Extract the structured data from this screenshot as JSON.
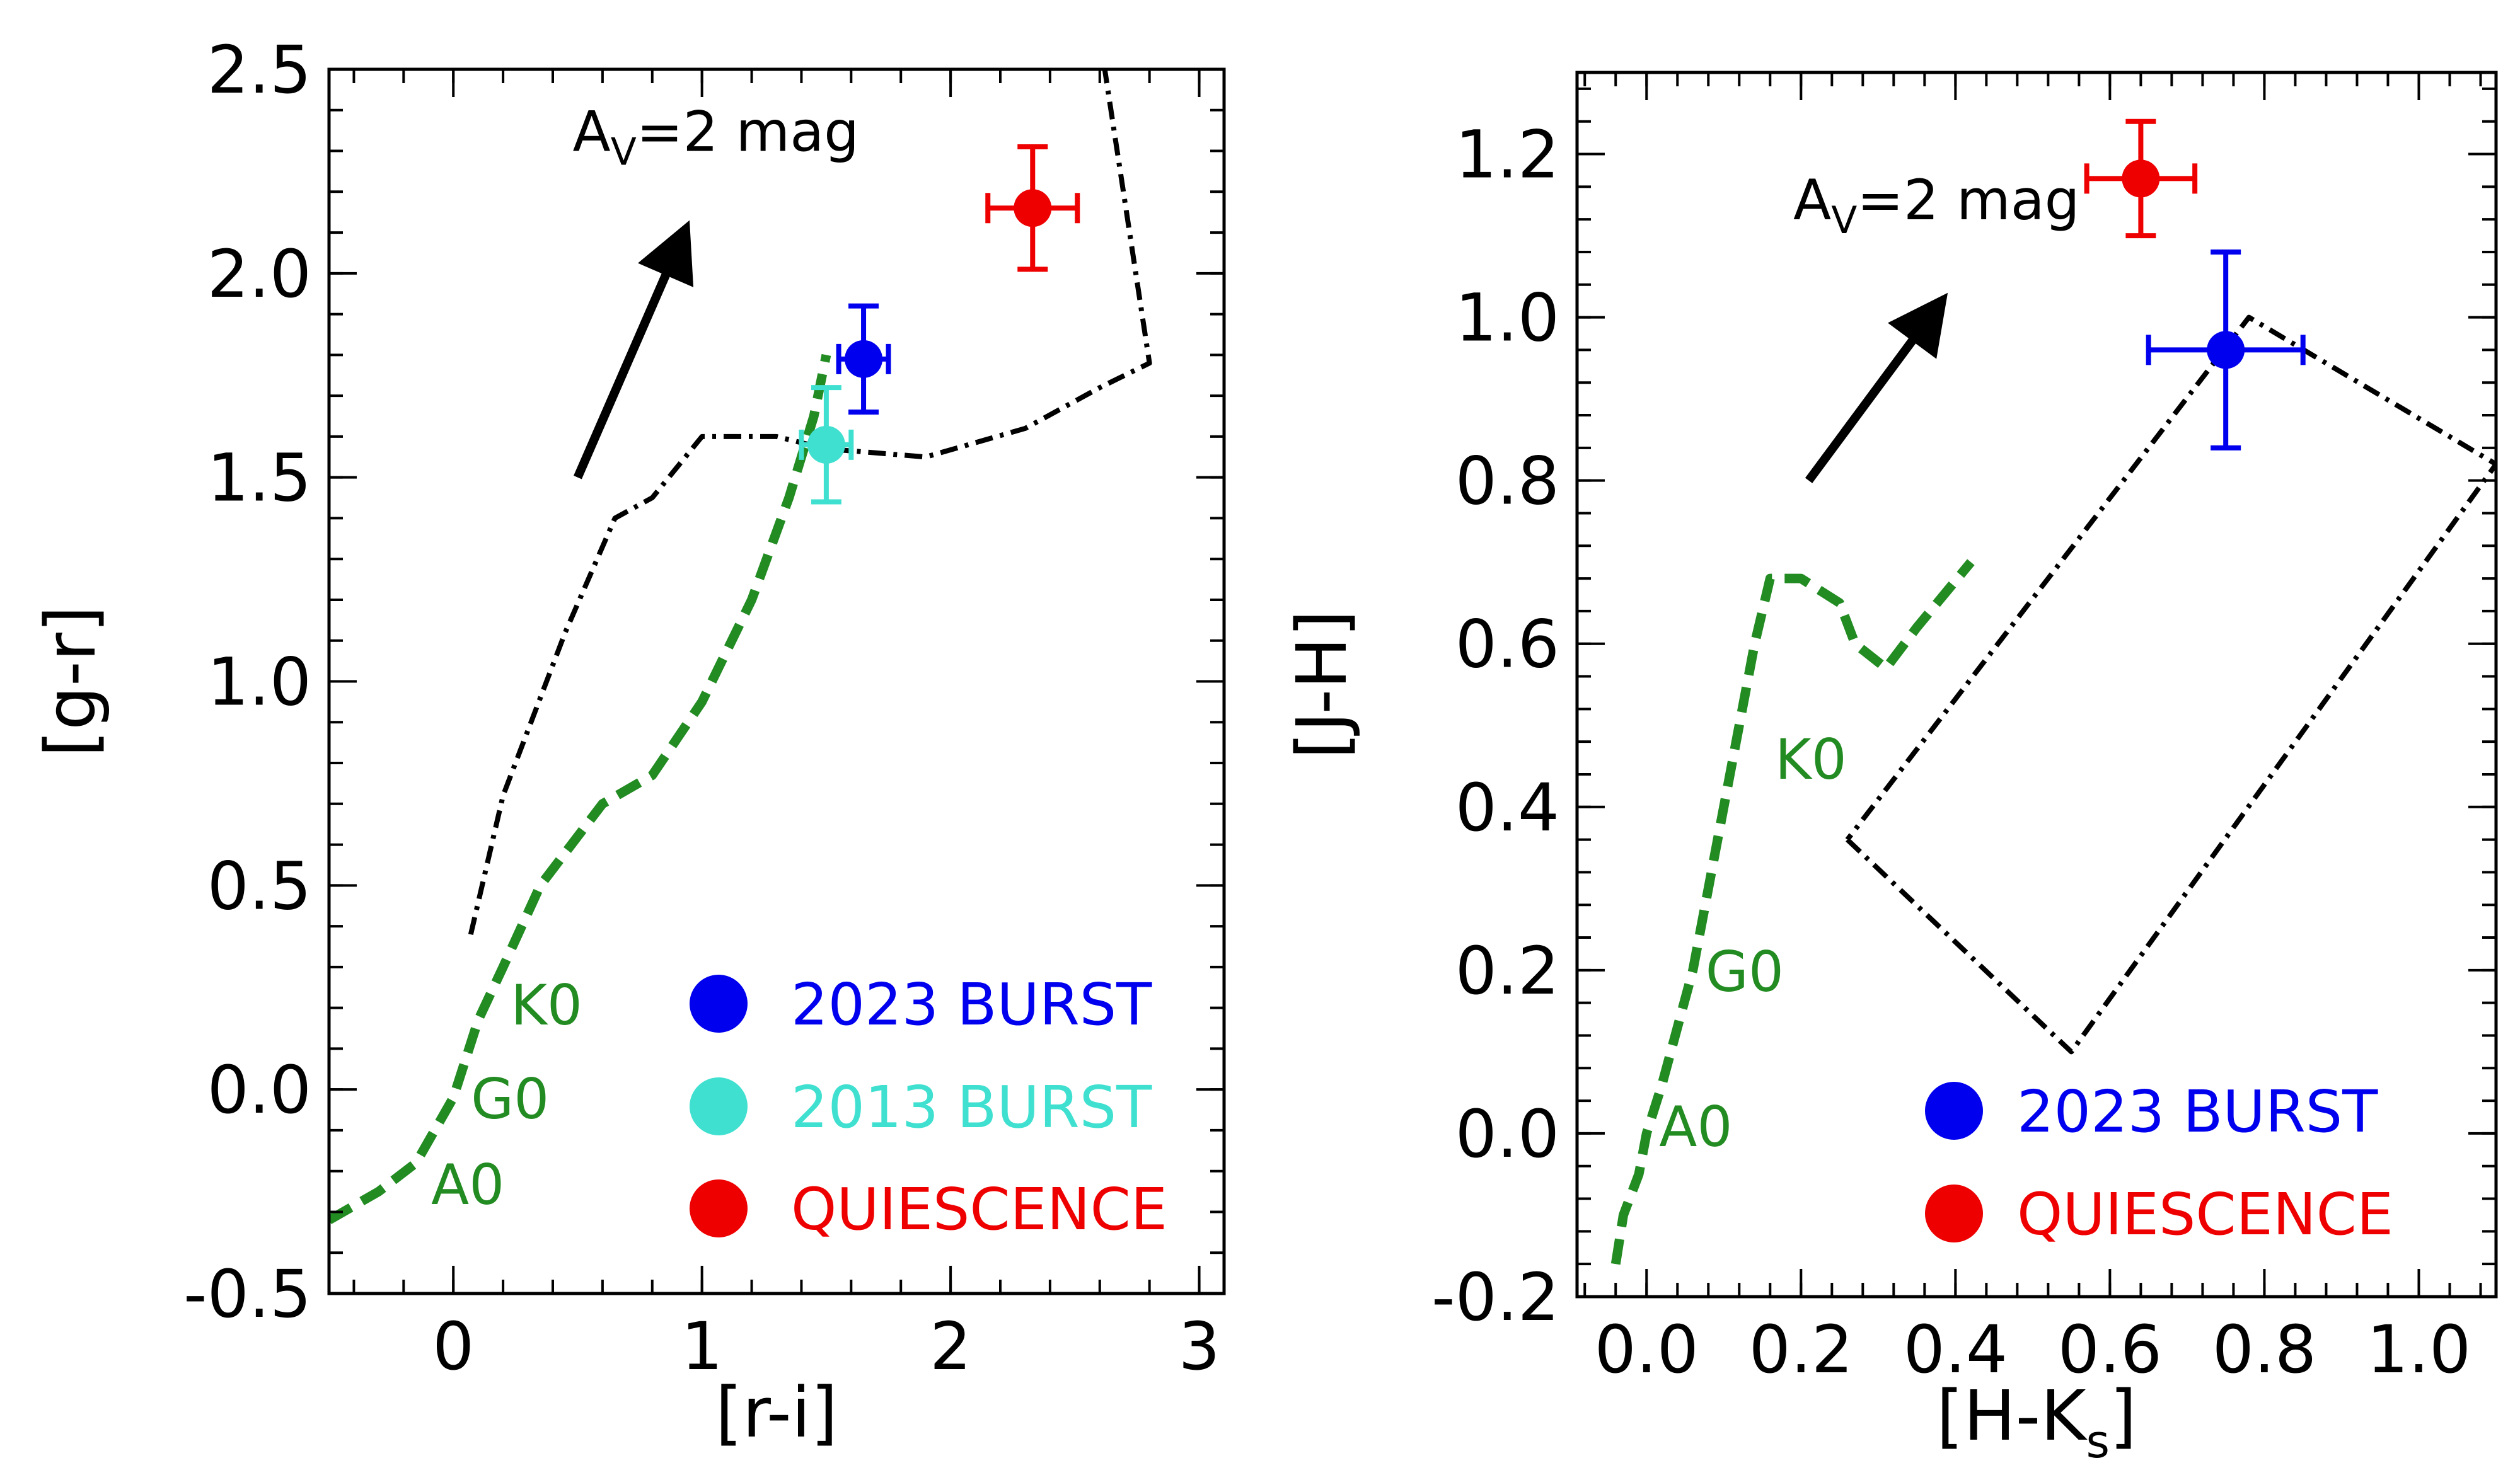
{
  "chart_data": [
    {
      "type": "scatter",
      "xlabel": "[r-i]",
      "ylabel": "[g-r]",
      "xlim": [
        -0.5,
        3.1
      ],
      "ylim": [
        -0.5,
        2.5
      ],
      "xticks": [
        0,
        1,
        2,
        3
      ],
      "xtick_labels": [
        "0",
        "1",
        "2",
        "3"
      ],
      "yticks": [
        -0.5,
        0.0,
        0.5,
        1.0,
        1.5,
        2.0,
        2.5
      ],
      "ytick_labels": [
        "-0.5",
        "0.0",
        "0.5",
        "1.0",
        "1.5",
        "2.0",
        "2.5"
      ],
      "extinction_vector": {
        "label": "A",
        "label_sub": "V",
        "label_rest": "=2 mag",
        "from": [
          0.5,
          1.5
        ],
        "to": [
          0.95,
          2.13
        ]
      },
      "main_sequence": {
        "color": "#228b22",
        "points": [
          [
            -0.5,
            -0.32
          ],
          [
            -0.3,
            -0.25
          ],
          [
            -0.15,
            -0.18
          ],
          [
            0.0,
            -0.02
          ],
          [
            0.1,
            0.17
          ],
          [
            0.2,
            0.3
          ],
          [
            0.35,
            0.5
          ],
          [
            0.6,
            0.7
          ],
          [
            0.8,
            0.77
          ],
          [
            1.0,
            0.95
          ],
          [
            1.2,
            1.2
          ],
          [
            1.35,
            1.45
          ],
          [
            1.45,
            1.65
          ],
          [
            1.5,
            1.8
          ]
        ],
        "spectral_types": [
          {
            "label": "K0",
            "x": 0.18,
            "y": 0.19
          },
          {
            "label": "G0",
            "x": 0.02,
            "y": -0.04
          },
          {
            "label": "A0",
            "x": -0.14,
            "y": -0.25
          }
        ]
      },
      "giant_branch": {
        "color": "#000000",
        "points": [
          [
            0.07,
            0.38
          ],
          [
            0.2,
            0.72
          ],
          [
            0.45,
            1.12
          ],
          [
            0.65,
            1.4
          ],
          [
            0.8,
            1.45
          ],
          [
            1.0,
            1.6
          ],
          [
            1.3,
            1.6
          ],
          [
            1.5,
            1.57
          ],
          [
            1.9,
            1.55
          ],
          [
            2.3,
            1.62
          ],
          [
            2.6,
            1.72
          ],
          [
            2.8,
            1.78
          ],
          [
            2.62,
            2.5
          ]
        ]
      },
      "series": [
        {
          "name": "2023 BURST",
          "color": "#0000ee",
          "x": 1.65,
          "y": 1.79,
          "xerr": 0.1,
          "yerr": 0.13
        },
        {
          "name": "2013 BURST",
          "color": "#40e0d0",
          "x": 1.5,
          "y": 1.58,
          "xerr": 0.1,
          "yerr": 0.14
        },
        {
          "name": "QUIESCENCE",
          "color": "#ee0000",
          "x": 2.33,
          "y": 2.16,
          "xerr": 0.18,
          "yerr": 0.15
        }
      ],
      "legend": [
        {
          "label": "2023 BURST",
          "color": "#0000ee"
        },
        {
          "label": "2013 BURST",
          "color": "#40e0d0"
        },
        {
          "label": "QUIESCENCE",
          "color": "#ee0000"
        }
      ]
    },
    {
      "type": "scatter",
      "xlabel": "[H-K",
      "xlabel_sub": "s",
      "xlabel_end": "]",
      "ylabel": "[J-H]",
      "xlim": [
        -0.09,
        1.1
      ],
      "ylim": [
        -0.2,
        1.3
      ],
      "xticks": [
        0.0,
        0.2,
        0.4,
        0.6,
        0.8,
        1.0
      ],
      "xtick_labels": [
        "0.0",
        "0.2",
        "0.4",
        "0.6",
        "0.8",
        "1.0"
      ],
      "yticks": [
        -0.2,
        0.0,
        0.2,
        0.4,
        0.6,
        0.8,
        1.0,
        1.2
      ],
      "ytick_labels": [
        "-0.2",
        "0.0",
        "0.2",
        "0.4",
        "0.6",
        "0.8",
        "1.0",
        "1.2"
      ],
      "extinction_vector": {
        "label": "A",
        "label_sub": "V",
        "label_rest": "=2 mag",
        "from": [
          0.21,
          0.8
        ],
        "to": [
          0.39,
          1.03
        ]
      },
      "main_sequence": {
        "color": "#228b22",
        "points": [
          [
            -0.04,
            -0.16
          ],
          [
            -0.03,
            -0.1
          ],
          [
            -0.01,
            -0.05
          ],
          [
            0.0,
            0.0
          ],
          [
            0.02,
            0.06
          ],
          [
            0.04,
            0.13
          ],
          [
            0.06,
            0.2
          ],
          [
            0.1,
            0.4
          ],
          [
            0.14,
            0.6
          ],
          [
            0.16,
            0.68
          ],
          [
            0.2,
            0.68
          ],
          [
            0.25,
            0.65
          ],
          [
            0.27,
            0.6
          ],
          [
            0.31,
            0.57
          ],
          [
            0.35,
            0.62
          ],
          [
            0.42,
            0.7
          ]
        ],
        "spectral_types": [
          {
            "label": "K0",
            "x": 0.15,
            "y": 0.45
          },
          {
            "label": "G0",
            "x": 0.06,
            "y": 0.19
          },
          {
            "label": "A0",
            "x": 0.0,
            "y": 0.0
          }
        ]
      },
      "giant_branch": {
        "color": "#000000",
        "points": [
          [
            0.26,
            0.36
          ],
          [
            0.55,
            0.1
          ],
          [
            1.1,
            0.82
          ],
          [
            0.78,
            1.0
          ],
          [
            0.26,
            0.36
          ]
        ]
      },
      "series": [
        {
          "name": "2023 BURST",
          "color": "#0000ee",
          "x": 0.75,
          "y": 0.96,
          "xerr": 0.1,
          "yerr": 0.12
        },
        {
          "name": "QUIESCENCE",
          "color": "#ee0000",
          "x": 0.64,
          "y": 1.17,
          "xerr": 0.07,
          "yerr": 0.07
        }
      ],
      "legend": [
        {
          "label": "2023 BURST",
          "color": "#0000ee"
        },
        {
          "label": "QUIESCENCE",
          "color": "#ee0000"
        }
      ]
    }
  ]
}
